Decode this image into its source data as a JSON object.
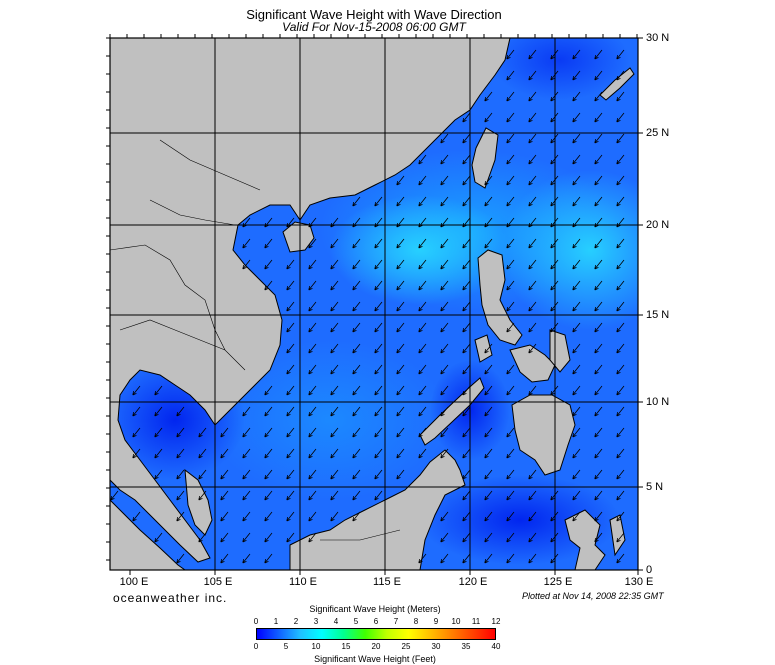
{
  "header": {
    "title": "Significant Wave Height with Wave Direction",
    "subtitle": "Valid For Nov-15-2008 06:00 GMT"
  },
  "map": {
    "lon_range": [
      99,
      130
    ],
    "lat_range": [
      0,
      30
    ],
    "land_color": "#c0c0c0",
    "grid_color": "#000000",
    "latitude_labels": [
      "30 N",
      "25 N",
      "20 N",
      "15 N",
      "10 N",
      "5 N",
      "0"
    ],
    "longitude_labels": [
      "100 E",
      "105 E",
      "110 E",
      "115 E",
      "120 E",
      "125 E",
      "130 E"
    ],
    "arrow_direction": "toward southwest"
  },
  "footer": {
    "brand": "oceanweather inc.",
    "plotted": "Plotted at Nov 14, 2008 22:35 GMT"
  },
  "legend": {
    "meters_title": "Significant Wave Height (Meters)",
    "meters_ticks": [
      "0",
      "1",
      "2",
      "3",
      "4",
      "5",
      "6",
      "7",
      "8",
      "9",
      "10",
      "11",
      "12"
    ],
    "feet_title": "Significant Wave Height (Feet)",
    "feet_ticks": [
      "0",
      "5",
      "10",
      "15",
      "20",
      "25",
      "30",
      "35",
      "40"
    ],
    "colors": [
      "#0000ff",
      "#1060ff",
      "#20c0ff",
      "#00ffff",
      "#00ff90",
      "#40ff00",
      "#c0ff00",
      "#ffff00",
      "#ffc000",
      "#ff8000",
      "#ff4000",
      "#ff0000"
    ]
  }
}
